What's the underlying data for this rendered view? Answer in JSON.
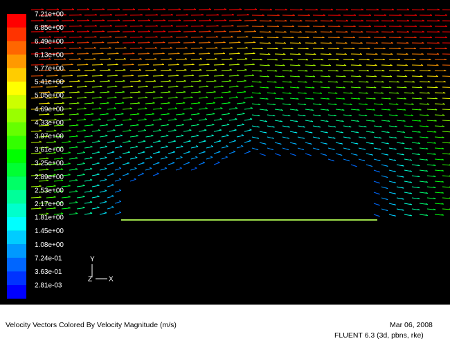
{
  "colorbar": {
    "labels": [
      "7.21e+00",
      "6.85e+00",
      "6.49e+00",
      "6.13e+00",
      "5.77e+00",
      "5.41e+00",
      "5.05e+00",
      "4.69e+00",
      "4.33e+00",
      "3.97e+00",
      "3.61e+00",
      "3.25e+00",
      "2.89e+00",
      "2.53e+00",
      "2.17e+00",
      "1.81e+00",
      "1.45e+00",
      "1.08e+00",
      "7.24e-01",
      "3.63e-01",
      "2.81e-03"
    ]
  },
  "axes": {
    "y": "Y",
    "z": "Z",
    "x": "X"
  },
  "footer": {
    "title": "Velocity Vectors Colored By Velocity Magnitude (m/s)",
    "date": "Mar 06, 2008",
    "solver": "FLUENT 6.3 (3d, pbns, rke)"
  }
}
